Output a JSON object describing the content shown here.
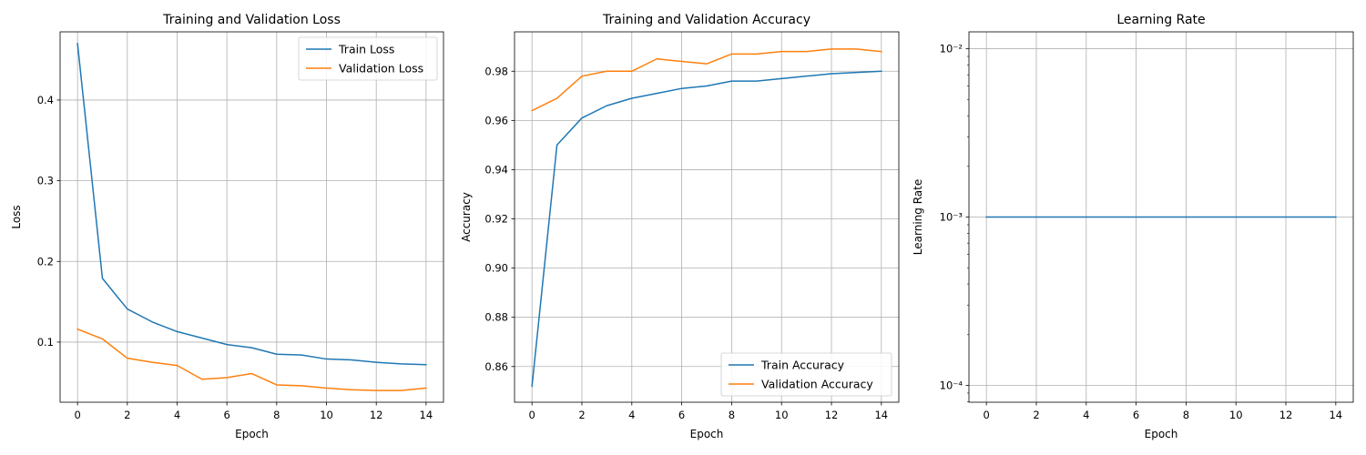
{
  "chart_data": [
    {
      "type": "line",
      "title": "Training and Validation Loss",
      "xlabel": "Epoch",
      "ylabel": "Loss",
      "x": [
        0,
        1,
        2,
        3,
        4,
        5,
        6,
        7,
        8,
        9,
        10,
        11,
        12,
        13,
        14
      ],
      "series": [
        {
          "name": "Train Loss",
          "color": "#1f77b4",
          "values": [
            0.47,
            0.179,
            0.141,
            0.125,
            0.113,
            0.105,
            0.097,
            0.093,
            0.085,
            0.084,
            0.079,
            0.078,
            0.075,
            0.073,
            0.072
          ]
        },
        {
          "name": "Validation Loss",
          "color": "#ff7f0e",
          "values": [
            0.116,
            0.104,
            0.08,
            0.075,
            0.071,
            0.054,
            0.056,
            0.061,
            0.047,
            0.046,
            0.043,
            0.041,
            0.04,
            0.04,
            0.043
          ]
        }
      ],
      "xlim": [
        -0.7,
        14.7
      ],
      "ylim": [
        0.0255,
        0.4845
      ],
      "xticks": [
        0,
        2,
        4,
        6,
        8,
        10,
        12,
        14
      ],
      "yticks": [
        0.1,
        0.2,
        0.3,
        0.4
      ],
      "ytick_labels": [
        "0.1",
        "0.2",
        "0.3",
        "0.4"
      ],
      "yscale": "linear",
      "grid": true,
      "legend": "top-right"
    },
    {
      "type": "line",
      "title": "Training and Validation Accuracy",
      "xlabel": "Epoch",
      "ylabel": "Accuracy",
      "x": [
        0,
        1,
        2,
        3,
        4,
        5,
        6,
        7,
        8,
        9,
        10,
        11,
        12,
        13,
        14
      ],
      "series": [
        {
          "name": "Train Accuracy",
          "color": "#1f77b4",
          "values": [
            0.852,
            0.95,
            0.961,
            0.966,
            0.969,
            0.971,
            0.973,
            0.974,
            0.976,
            0.976,
            0.977,
            0.978,
            0.979,
            0.9795,
            0.98
          ]
        },
        {
          "name": "Validation Accuracy",
          "color": "#ff7f0e",
          "values": [
            0.964,
            0.969,
            0.978,
            0.98,
            0.98,
            0.985,
            0.984,
            0.983,
            0.987,
            0.987,
            0.988,
            0.988,
            0.989,
            0.989,
            0.988
          ]
        }
      ],
      "xlim": [
        -0.7,
        14.7
      ],
      "ylim": [
        0.8455,
        0.996
      ],
      "xticks": [
        0,
        2,
        4,
        6,
        8,
        10,
        12,
        14
      ],
      "yticks": [
        0.86,
        0.88,
        0.9,
        0.92,
        0.94,
        0.96,
        0.98
      ],
      "ytick_labels": [
        "0.86",
        "0.88",
        "0.90",
        "0.92",
        "0.94",
        "0.96",
        "0.98"
      ],
      "yscale": "linear",
      "grid": true,
      "legend": "bottom-right"
    },
    {
      "type": "line",
      "title": "Learning Rate",
      "xlabel": "Epoch",
      "ylabel": "Learning Rate",
      "x": [
        0,
        1,
        2,
        3,
        4,
        5,
        6,
        7,
        8,
        9,
        10,
        11,
        12,
        13,
        14
      ],
      "series": [
        {
          "color": "#1f77b4",
          "values": [
            0.001,
            0.001,
            0.001,
            0.001,
            0.001,
            0.001,
            0.001,
            0.001,
            0.001,
            0.001,
            0.001,
            0.001,
            0.001,
            0.001,
            0.001
          ]
        }
      ],
      "xlim": [
        -0.7,
        14.7
      ],
      "ylim": [
        7.94e-05,
        0.0126
      ],
      "xticks": [
        0,
        2,
        4,
        6,
        8,
        10,
        12,
        14
      ],
      "yticks": [
        0.0001,
        0.001,
        0.01
      ],
      "ytick_labels": [
        "10⁻⁴",
        "10⁻³",
        "10⁻²"
      ],
      "yscale": "log",
      "grid": true,
      "legend": "none"
    }
  ]
}
